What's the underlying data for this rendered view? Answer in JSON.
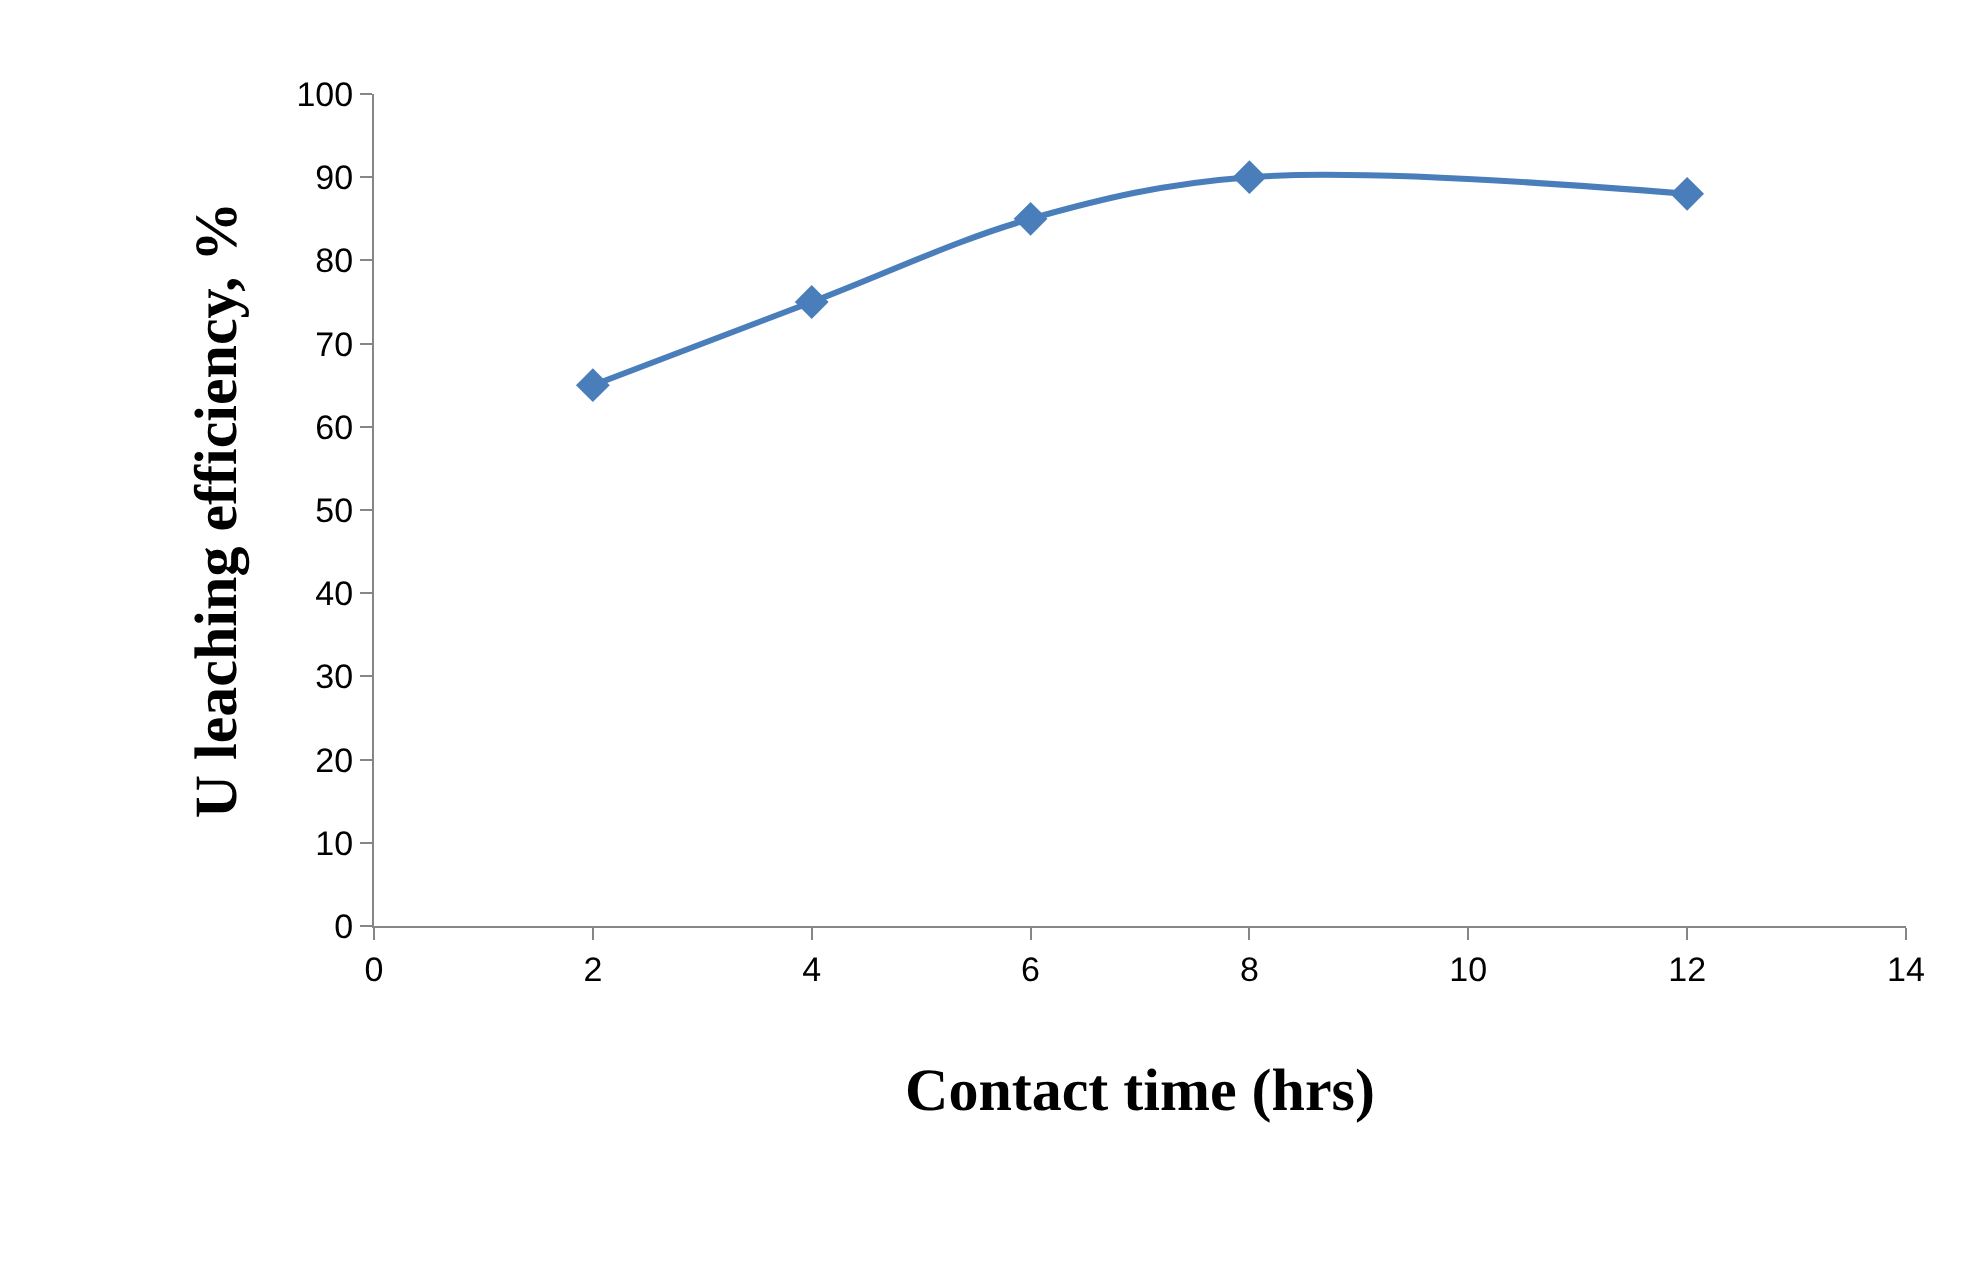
{
  "chart_data": {
    "type": "line",
    "xlabel": "Contact time (hrs)",
    "ylabel": "U leaching efficiency, %",
    "x": [
      2,
      4,
      6,
      8,
      12
    ],
    "series": [
      {
        "color": "#4a7ebb",
        "values": [
          65,
          75,
          85,
          90,
          88
        ]
      }
    ],
    "xlim": [
      0,
      14
    ],
    "xticks": [
      0,
      2,
      4,
      6,
      8,
      10,
      12,
      14
    ],
    "ylim": [
      0,
      100
    ],
    "yticks": [
      0,
      10,
      20,
      30,
      40,
      50,
      60,
      70,
      80,
      90,
      100
    ],
    "grid": false,
    "legend": false,
    "marker": "diamond",
    "line_style": "solid"
  }
}
